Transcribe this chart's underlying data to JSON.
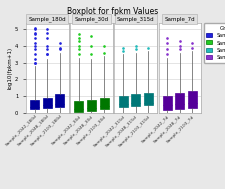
{
  "title": "Boxplot for fpkm Values",
  "ylabel": "log10(fpkm+1)",
  "facets": [
    "Sample_180d",
    "Sample_30d",
    "Sample_315d",
    "Sample_7d"
  ],
  "groups": [
    "Sample_180d",
    "Sample_30d",
    "Sample_315d",
    "Sample_7d"
  ],
  "group_colors": [
    "#2222dd",
    "#22cc22",
    "#22bbbb",
    "#8833cc"
  ],
  "group_colors_dark": [
    "#000099",
    "#007700",
    "#007777",
    "#550099"
  ],
  "samples_per_facet": [
    [
      "Sample_2042_180d",
      "Sample_2048_180d",
      "Sample_2103_180d"
    ],
    [
      "Sample_2042_30d",
      "Sample_2048_30d",
      "Sample_2103_30d"
    ],
    [
      "Sample_2042_315d",
      "Sample_2048_315d",
      "Sample_2103_315d"
    ],
    [
      "Sample_2042_7d",
      "Sample_2048_7d",
      "Sample_2103_7d"
    ]
  ],
  "box_stats": {
    "Sample_2042_180d": {
      "q1": 0.2,
      "med": 0.35,
      "q3": 0.75,
      "whislo": 0.0,
      "whishi": 2.8,
      "fliers_high": [
        3.0,
        3.5,
        4.0,
        4.5,
        5.0,
        5.1,
        4.8,
        4.2,
        3.8,
        3.2,
        3.0,
        4.7
      ]
    },
    "Sample_2048_180d": {
      "q1": 0.3,
      "med": 0.45,
      "q3": 0.9,
      "whislo": 0.0,
      "whishi": 3.2,
      "fliers_high": [
        3.5,
        4.0,
        4.5,
        5.0,
        4.8,
        3.8,
        3.5
      ]
    },
    "Sample_2103_180d": {
      "q1": 0.35,
      "med": 0.5,
      "q3": 1.1,
      "whislo": 0.0,
      "whishi": 3.6,
      "fliers_high": [
        3.8,
        4.2,
        3.9
      ]
    },
    "Sample_2042_30d": {
      "q1": 0.05,
      "med": 0.2,
      "q3": 0.7,
      "whislo": 0.0,
      "whishi": 3.3,
      "fliers_high": [
        3.5,
        4.0,
        4.5,
        4.7,
        4.3,
        3.8
      ]
    },
    "Sample_2048_30d": {
      "q1": 0.1,
      "med": 0.25,
      "q3": 0.75,
      "whislo": 0.0,
      "whishi": 3.2,
      "fliers_high": [
        3.5,
        4.0,
        4.6
      ]
    },
    "Sample_2103_30d": {
      "q1": 0.2,
      "med": 0.4,
      "q3": 0.9,
      "whislo": 0.0,
      "whishi": 3.4,
      "fliers_high": [
        3.6,
        4.0
      ]
    },
    "Sample_2042_315d": {
      "q1": 0.35,
      "med": 0.5,
      "q3": 1.0,
      "whislo": 0.0,
      "whishi": 3.5,
      "fliers_high": [
        3.7,
        3.9
      ]
    },
    "Sample_2048_315d": {
      "q1": 0.4,
      "med": 0.55,
      "q3": 1.1,
      "whislo": 0.0,
      "whishi": 3.6,
      "fliers_high": [
        3.8,
        4.0
      ]
    },
    "Sample_2103_315d": {
      "q1": 0.45,
      "med": 0.6,
      "q3": 1.15,
      "whislo": 0.0,
      "whishi": 3.7,
      "fliers_high": [
        3.9
      ]
    },
    "Sample_2042_7d": {
      "q1": 0.15,
      "med": 0.45,
      "q3": 1.0,
      "whislo": 0.0,
      "whishi": 3.3,
      "fliers_high": [
        3.5,
        3.8,
        4.2,
        4.5
      ]
    },
    "Sample_2048_7d": {
      "q1": 0.2,
      "med": 0.5,
      "q3": 1.2,
      "whislo": 0.0,
      "whishi": 3.6,
      "fliers_high": [
        3.8,
        4.0,
        4.3
      ]
    },
    "Sample_2103_7d": {
      "q1": 0.3,
      "med": 0.55,
      "q3": 1.3,
      "whislo": 0.0,
      "whishi": 3.7,
      "fliers_high": [
        3.9,
        4.2
      ]
    }
  },
  "ylim": [
    -0.05,
    5.4
  ],
  "yticks": [
    0,
    1,
    2,
    3,
    4,
    5
  ],
  "background_color": "#e8e8e8",
  "panel_background": "#ffffff",
  "grid_color": "#d0d0d0",
  "facet_bg": "#e0e0e0"
}
